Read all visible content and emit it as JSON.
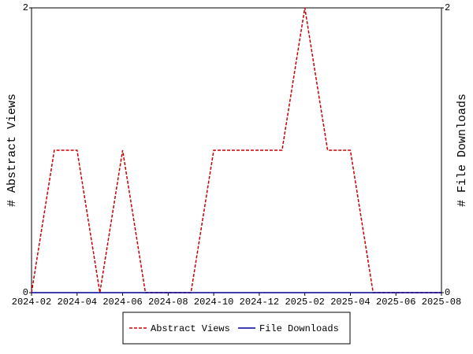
{
  "chart_data": {
    "type": "line",
    "x": [
      "2024-02",
      "2024-03",
      "2024-04",
      "2024-05",
      "2024-06",
      "2024-07",
      "2024-08",
      "2024-09",
      "2024-10",
      "2024-11",
      "2024-12",
      "2025-01",
      "2025-02",
      "2025-03",
      "2025-04",
      "2025-05",
      "2025-06",
      "2025-07",
      "2025-08"
    ],
    "series": [
      {
        "name": "Abstract Views",
        "color": "#cc0000",
        "dash": true,
        "values": [
          0,
          1,
          1,
          0,
          1,
          0,
          0,
          0,
          1,
          1,
          1,
          1,
          2,
          1,
          1,
          0,
          0,
          0,
          0
        ]
      },
      {
        "name": "File Downloads",
        "color": "#000099",
        "axis": "y2",
        "values": [
          0,
          0,
          0,
          0,
          0,
          0,
          0,
          0,
          0,
          0,
          0,
          0,
          0,
          0,
          0,
          0,
          0,
          0,
          0
        ]
      }
    ],
    "xlim": [
      "2024-02",
      "2025-08"
    ],
    "xticks": [
      "2024-02",
      "2024-04",
      "2024-06",
      "2024-08",
      "2024-10",
      "2024-12",
      "2025-02",
      "2025-04",
      "2025-06",
      "2025-08"
    ],
    "ylim": [
      0,
      2
    ],
    "yticks": [
      0,
      2
    ],
    "y2lim": [
      0,
      2
    ],
    "y2ticks": [
      0,
      2
    ],
    "ylabel": "# Abstract Views",
    "y2label": "# File Downloads",
    "legend": "bottom"
  }
}
